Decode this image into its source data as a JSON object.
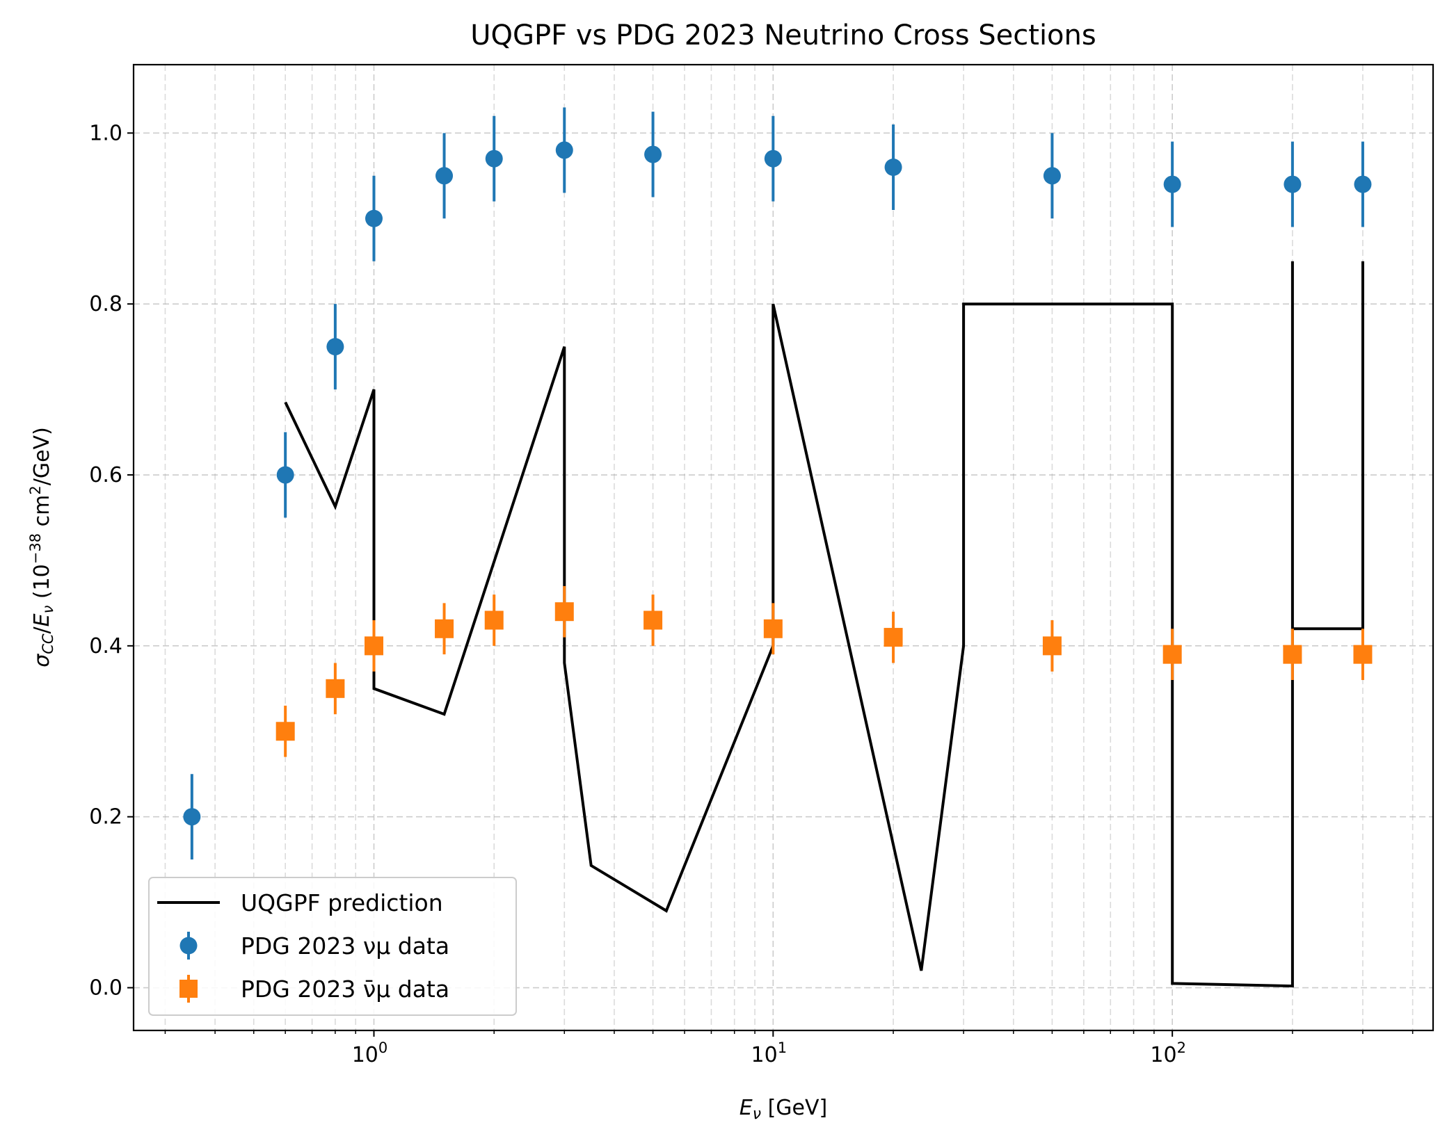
{
  "chart_data": {
    "type": "line",
    "title": "UQGPF vs PDG 2023 Neutrino Cross Sections",
    "xlabel": "E_ν [GeV]",
    "ylabel": "σ_CC/E_ν (10^−38 cm^2/GeV)",
    "xscale": "log",
    "xlim": [
      0.25,
      450
    ],
    "ylim": [
      -0.05,
      1.08
    ],
    "grid": true,
    "legend_position": "lower-left",
    "x_ticks": [
      {
        "base": "10",
        "exp": "0",
        "value": 1
      },
      {
        "base": "10",
        "exp": "1",
        "value": 10
      },
      {
        "base": "10",
        "exp": "2",
        "value": 100
      }
    ],
    "y_ticks": [
      "0.0",
      "0.2",
      "0.4",
      "0.6",
      "0.8",
      "1.0"
    ],
    "series": [
      {
        "name": "UQGPF prediction",
        "kind": "line",
        "color": "#000000",
        "points": [
          [
            0.6,
            0.685
          ],
          [
            0.8,
            0.563
          ],
          [
            1.0,
            0.7
          ],
          [
            1.0,
            0.35
          ],
          [
            1.5,
            0.32
          ],
          [
            3.0,
            0.75
          ],
          [
            3.0,
            0.38
          ],
          [
            3.5,
            0.143
          ],
          [
            5.4,
            0.09
          ],
          [
            10.0,
            0.4
          ],
          [
            10.0,
            0.8
          ],
          [
            23.5,
            0.02
          ],
          [
            30.0,
            0.4
          ],
          [
            30.0,
            0.8
          ],
          [
            100.0,
            0.8
          ],
          [
            100.0,
            0.005
          ],
          [
            200.0,
            0.002
          ],
          [
            200.0,
            0.85
          ],
          [
            200.0,
            0.42
          ],
          [
            300.0,
            0.42
          ],
          [
            300.0,
            0.85
          ]
        ]
      },
      {
        "name": "PDG 2023 νμ data",
        "kind": "errorbar",
        "marker": "circle",
        "color": "#1f77b4",
        "x": [
          0.35,
          0.6,
          0.8,
          1.0,
          1.5,
          2.0,
          3.0,
          5.0,
          10.0,
          20.0,
          50.0,
          100.0,
          200.0,
          300.0
        ],
        "y": [
          0.2,
          0.6,
          0.75,
          0.9,
          0.95,
          0.97,
          0.98,
          0.975,
          0.97,
          0.96,
          0.95,
          0.94,
          0.94,
          0.94
        ],
        "yerr": [
          0.05,
          0.05,
          0.05,
          0.05,
          0.05,
          0.05,
          0.05,
          0.05,
          0.05,
          0.05,
          0.05,
          0.05,
          0.05,
          0.05
        ]
      },
      {
        "name": "PDG 2023 ν̄μ data",
        "kind": "errorbar",
        "marker": "square",
        "color": "#ff7f0e",
        "x": [
          0.6,
          0.8,
          1.0,
          1.5,
          2.0,
          3.0,
          5.0,
          10.0,
          20.0,
          50.0,
          100.0,
          200.0,
          300.0
        ],
        "y": [
          0.3,
          0.35,
          0.4,
          0.42,
          0.43,
          0.44,
          0.43,
          0.42,
          0.41,
          0.4,
          0.39,
          0.39,
          0.39
        ],
        "yerr": [
          0.03,
          0.03,
          0.03,
          0.03,
          0.03,
          0.03,
          0.03,
          0.03,
          0.03,
          0.03,
          0.03,
          0.03,
          0.03
        ]
      }
    ]
  }
}
